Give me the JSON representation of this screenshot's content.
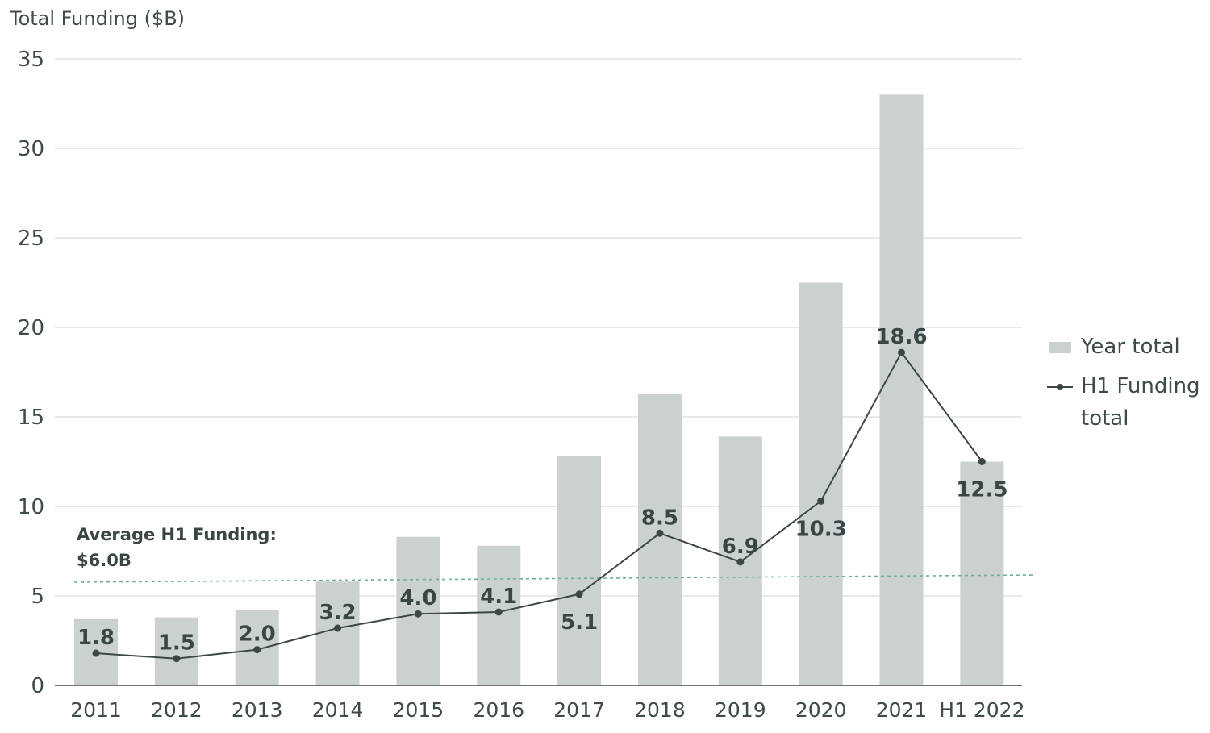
{
  "chart_data": {
    "type": "bar",
    "ylabel": "Total Funding ($B)",
    "ylim": [
      0,
      35
    ],
    "yticks": [
      0,
      5,
      10,
      15,
      20,
      25,
      30,
      35
    ],
    "grid": true,
    "categories": [
      "2011",
      "2012",
      "2013",
      "2014",
      "2015",
      "2016",
      "2017",
      "2018",
      "2019",
      "2020",
      "2021",
      "H1 2022"
    ],
    "series": [
      {
        "name": "Year total",
        "type": "bar",
        "color": "#cbd1d1",
        "values": [
          3.7,
          3.8,
          4.2,
          5.8,
          8.3,
          7.8,
          12.8,
          16.3,
          13.9,
          22.5,
          33.0,
          12.5
        ]
      },
      {
        "name": "H1 Funding total",
        "type": "line",
        "color": "#3d4747",
        "values": [
          1.8,
          1.5,
          2.0,
          3.2,
          4.0,
          4.1,
          5.1,
          8.5,
          6.9,
          10.3,
          18.6,
          12.5
        ],
        "labels": [
          "1.8",
          "1.5",
          "2.0",
          "3.2",
          "4.0",
          "4.1",
          "5.1",
          "8.5",
          "6.9",
          "10.3",
          "18.6",
          "12.5"
        ],
        "label_positions": [
          "above",
          "above",
          "above",
          "above",
          "above",
          "above",
          "below",
          "above",
          "above",
          "below",
          "above",
          "below"
        ]
      }
    ],
    "reference_line": {
      "label_line1": "Average H1 Funding:",
      "label_line2": "$6.0B",
      "value": 6.0,
      "color": "#6fae9a"
    },
    "legend": {
      "placement": "right",
      "items": [
        {
          "label": "Year total",
          "kind": "bar"
        },
        {
          "label_line1": "H1 Funding",
          "label_line2": "total",
          "kind": "line"
        }
      ]
    }
  }
}
